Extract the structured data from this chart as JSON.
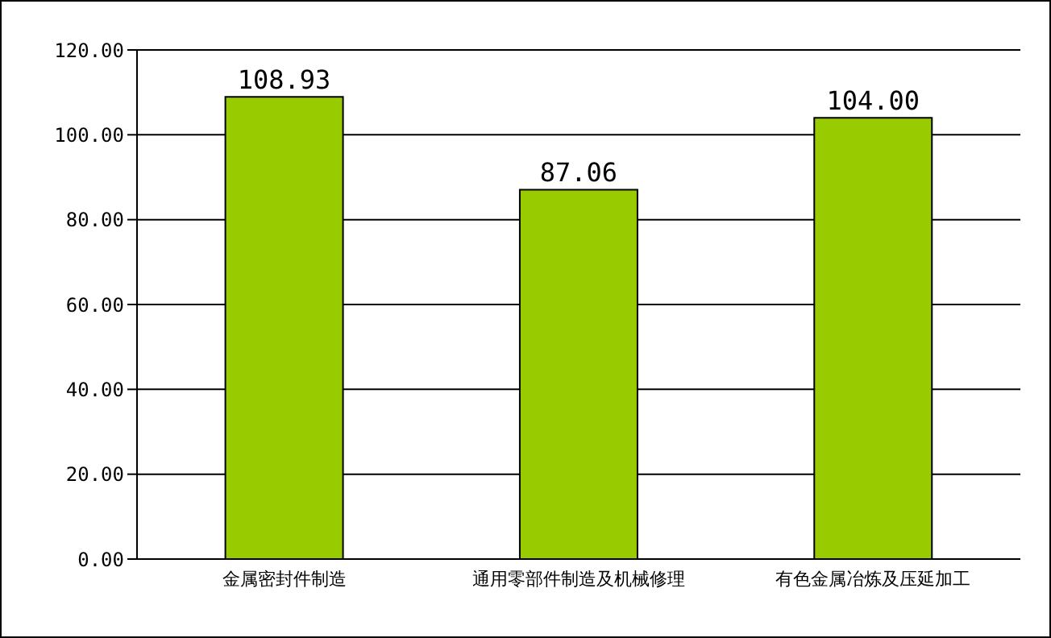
{
  "chart_data": {
    "type": "bar",
    "categories": [
      "金属密封件制造",
      "通用零部件制造及机械修理",
      "有色金属冶炼及压延加工"
    ],
    "values": [
      108.93,
      87.06,
      104.0
    ],
    "value_labels": [
      "108.93",
      "87.06",
      "104.00"
    ],
    "color": "#99cc00",
    "ylim": [
      0,
      120
    ],
    "yticks": [
      {
        "value": 0,
        "label": "0.00"
      },
      {
        "value": 20,
        "label": "20.00"
      },
      {
        "value": 40,
        "label": "40.00"
      },
      {
        "value": 60,
        "label": "60.00"
      },
      {
        "value": 80,
        "label": "80.00"
      },
      {
        "value": 100,
        "label": "100.00"
      },
      {
        "value": 120,
        "label": "120.00"
      }
    ],
    "grid": "y",
    "legend": false
  }
}
